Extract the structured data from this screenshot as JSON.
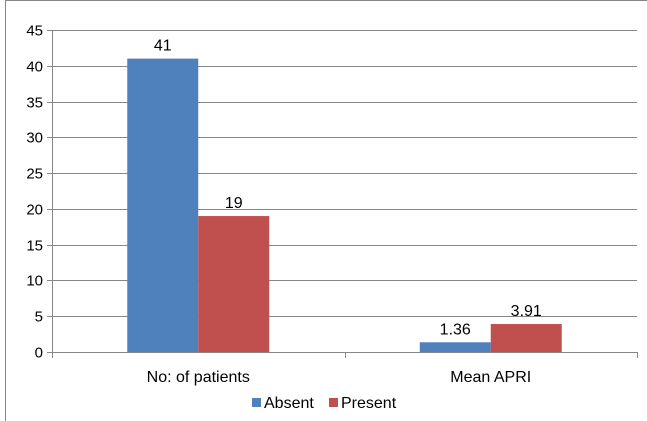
{
  "chart_data": {
    "type": "bar",
    "categories": [
      "No: of patients",
      "Mean APRI"
    ],
    "series": [
      {
        "name": "Absent",
        "values": [
          41,
          1.36
        ],
        "labels": [
          "41",
          "1.36"
        ],
        "color": "#4f81bd"
      },
      {
        "name": "Present",
        "values": [
          19,
          3.91
        ],
        "labels": [
          "19",
          "3.91"
        ],
        "color": "#c0504d"
      }
    ],
    "ylim": [
      0,
      45
    ],
    "yticks": [
      0,
      5,
      10,
      15,
      20,
      25,
      30,
      35,
      40,
      45
    ],
    "grid": true,
    "legend_position": "bottom"
  }
}
